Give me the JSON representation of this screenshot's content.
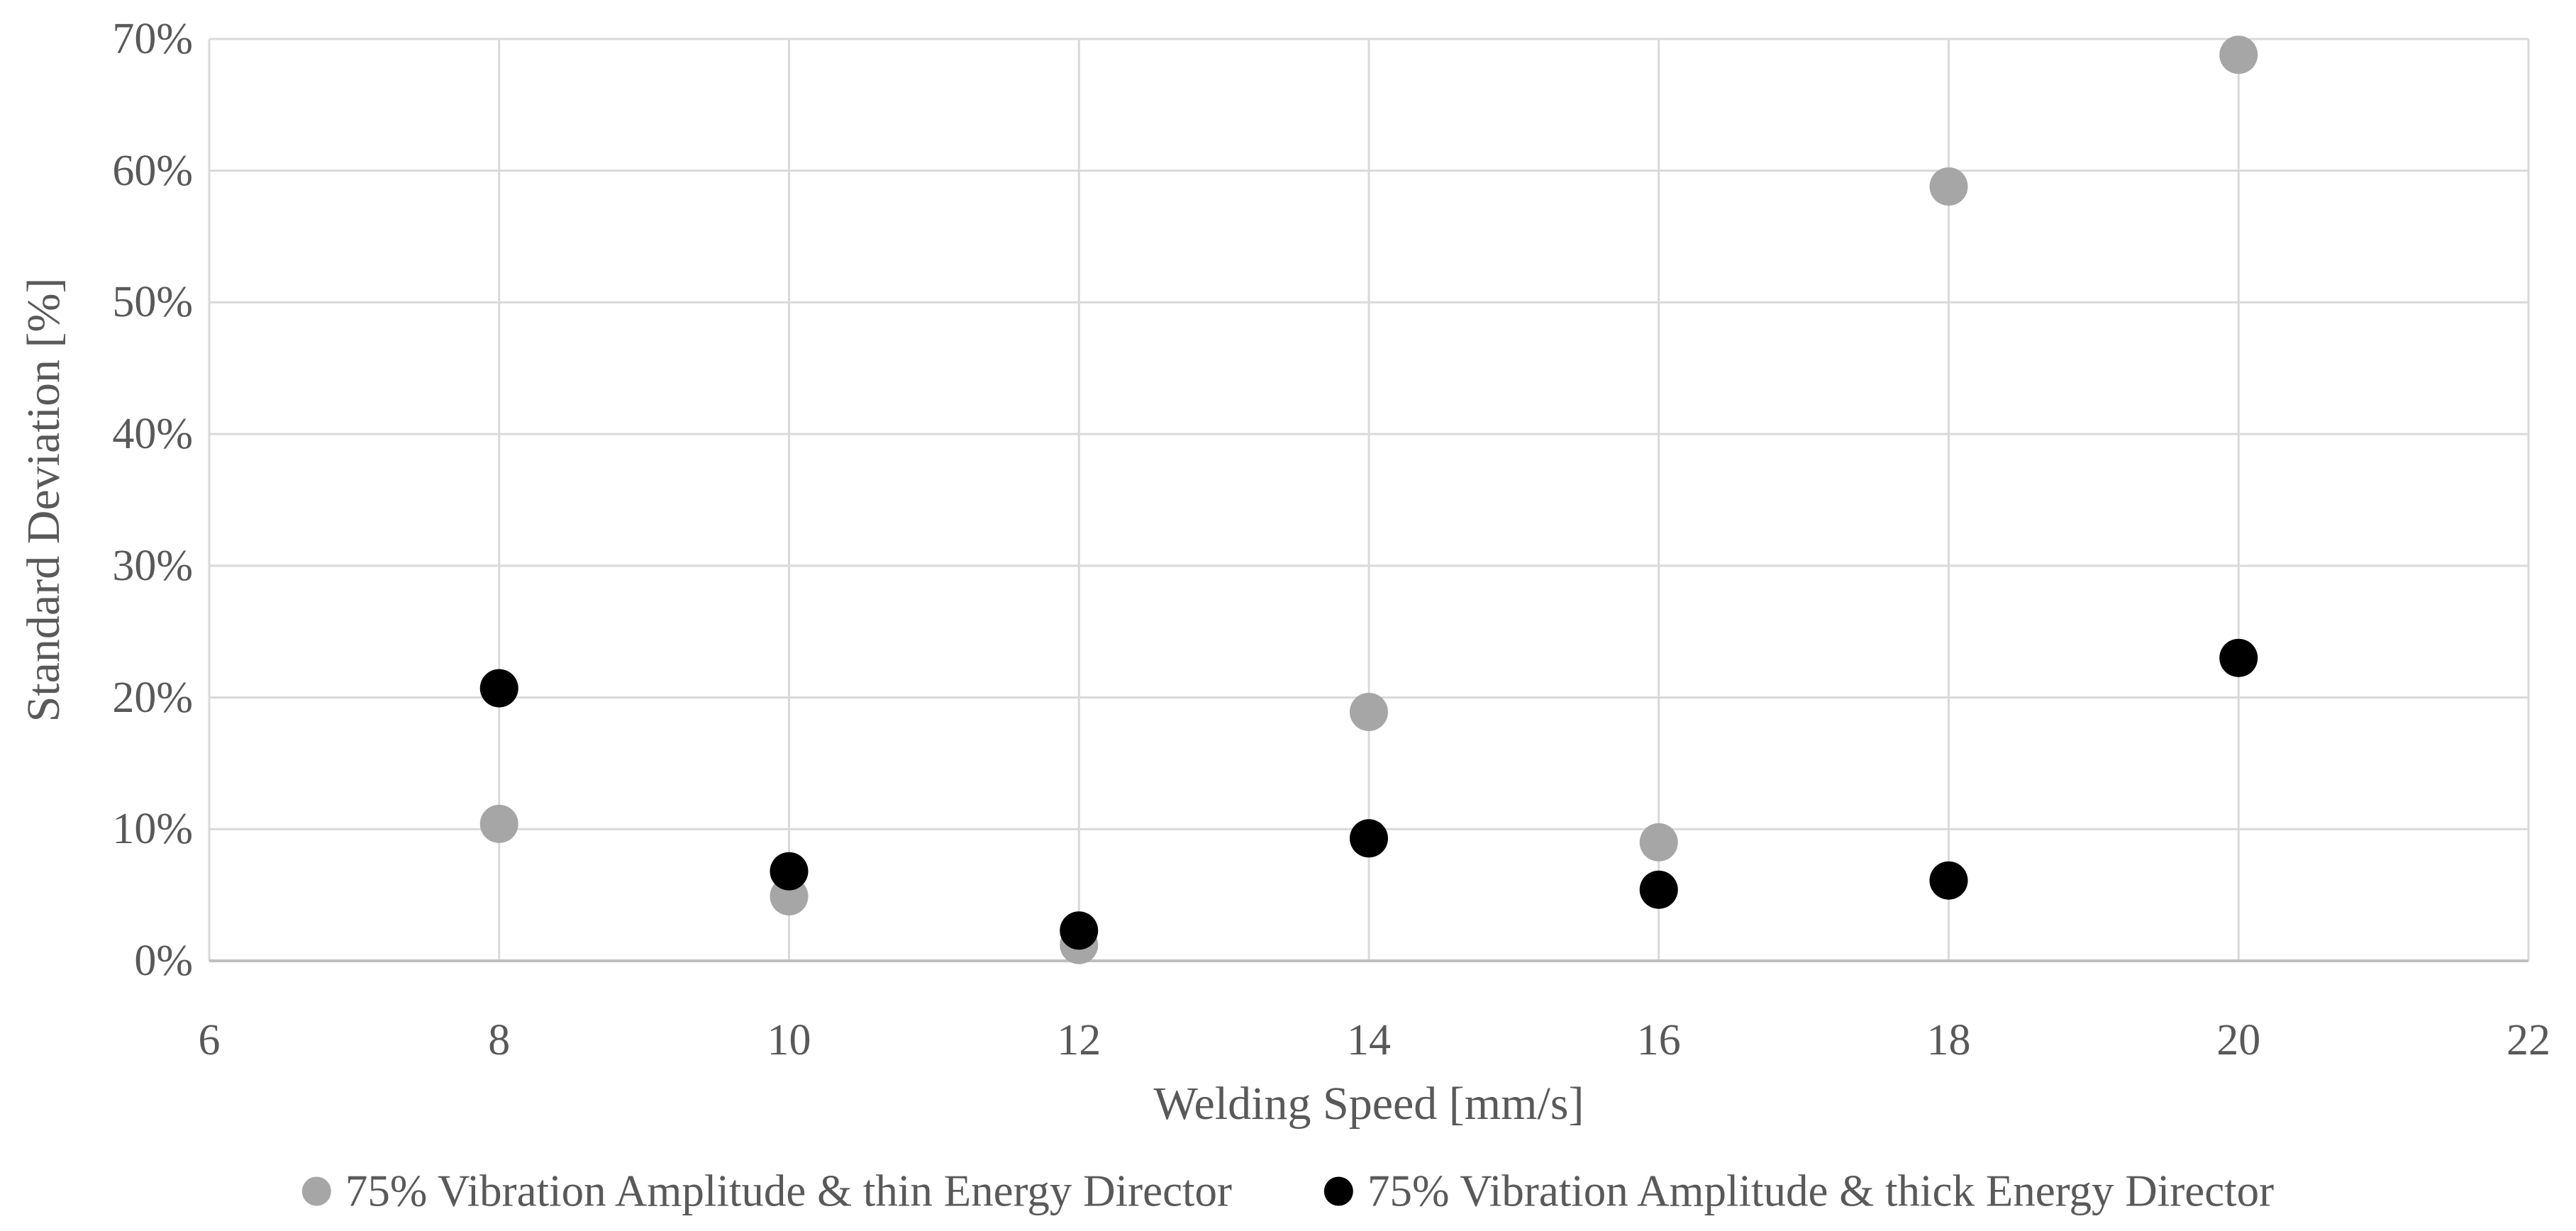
{
  "chart_data": {
    "type": "scatter",
    "title": "",
    "xlabel": "Welding Speed [mm/s]",
    "ylabel": "Standard Deviation [%]",
    "xlim": [
      6,
      22
    ],
    "x_tick_step": 2,
    "ylim_percent": [
      0,
      70
    ],
    "y_tick_step_percent": 10,
    "grid": true,
    "legend_position": "bottom-center",
    "x_ticks": [
      "6",
      "8",
      "10",
      "12",
      "14",
      "16",
      "18",
      "20",
      "22"
    ],
    "y_ticks": [
      "0%",
      "10%",
      "20%",
      "30%",
      "40%",
      "50%",
      "60%",
      "70%"
    ],
    "series": [
      {
        "name": "75% Vibration Amplitude & thin Energy Director",
        "marker": "circle",
        "color": "#a6a6a6",
        "x": [
          8,
          10,
          12,
          14,
          16,
          18,
          20
        ],
        "y_percent": [
          10.4,
          4.9,
          1.2,
          18.9,
          9.0,
          58.8,
          68.8
        ]
      },
      {
        "name": "75% Vibration Amplitude & thick Energy Director",
        "marker": "circle",
        "color": "#000000",
        "x": [
          8,
          10,
          12,
          14,
          16,
          18,
          20
        ],
        "y_percent": [
          20.7,
          6.8,
          2.3,
          9.3,
          5.4,
          6.1,
          23.0
        ]
      }
    ]
  },
  "colors": {
    "background": "#ffffff",
    "gridline": "#d9d9d9",
    "axis_line": "#bfbfbf",
    "text": "#595959"
  }
}
